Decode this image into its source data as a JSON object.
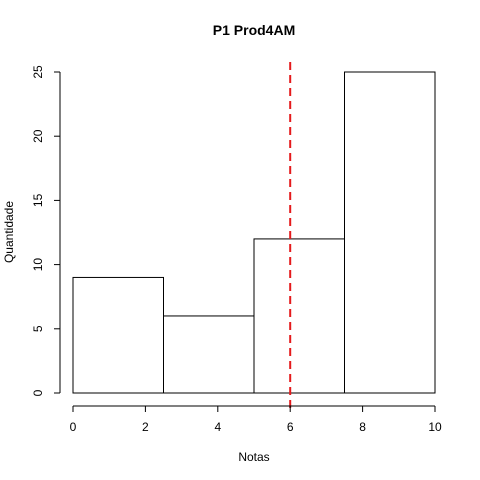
{
  "chart_data": {
    "type": "bar",
    "title": "P1 Prod4AM",
    "xlabel": "Notas",
    "ylabel": "Quantidade",
    "bins": [
      {
        "from": 0,
        "to": 2.5,
        "count": 9
      },
      {
        "from": 2.5,
        "to": 5,
        "count": 6
      },
      {
        "from": 5,
        "to": 7.5,
        "count": 12
      },
      {
        "from": 7.5,
        "to": 10,
        "count": 25
      }
    ],
    "xlim": [
      0,
      10
    ],
    "ylim": [
      0,
      25
    ],
    "x_ticks": [
      "0",
      "2",
      "4",
      "6",
      "8",
      "10"
    ],
    "y_ticks": [
      "0",
      "5",
      "10",
      "15",
      "20",
      "25"
    ],
    "reference_line": {
      "x": 6,
      "color": "#e41a1c",
      "style": "dashed"
    },
    "grid": false
  }
}
